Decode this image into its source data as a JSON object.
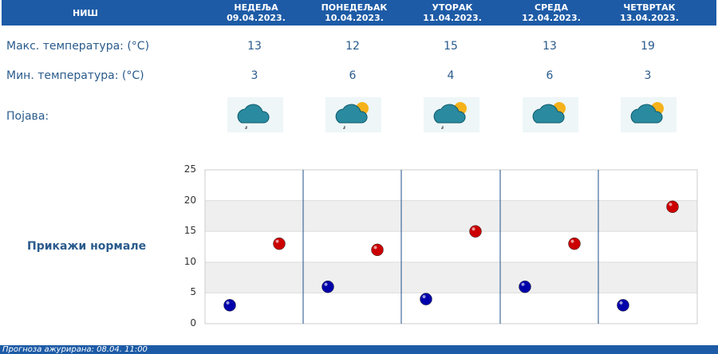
{
  "header": {
    "city": "НИШ",
    "days": [
      {
        "name": "НЕДЕЉА",
        "date": "09.04.2023.",
        "max": "13",
        "min": "3",
        "icon": "cloud-rain-icon"
      },
      {
        "name": "ПОНЕДЕЉАК",
        "date": "10.04.2023.",
        "max": "12",
        "min": "6",
        "icon": "partly-cloudy-rain-icon"
      },
      {
        "name": "УТОРАК",
        "date": "11.04.2023.",
        "max": "15",
        "min": "4",
        "icon": "partly-cloudy-rain-icon"
      },
      {
        "name": "СРЕДА",
        "date": "12.04.2023.",
        "max": "13",
        "min": "6",
        "icon": "partly-cloudy-icon"
      },
      {
        "name": "ЧЕТВРТАК",
        "date": "13.04.2023.",
        "max": "19",
        "min": "3",
        "icon": "partly-cloudy-icon"
      }
    ]
  },
  "labels": {
    "max": "Макс. температура: (°C)",
    "min": "Мин. температура: (°C)",
    "phenomenon": "Појава:"
  },
  "show_normals": "Прикажи нормале",
  "footer": "Прогноза ажурирана:  08.04. 11:00",
  "chart_data": {
    "type": "scatter",
    "ylim": [
      0,
      25
    ],
    "yticks": [
      "0",
      "5",
      "10",
      "15",
      "20",
      "25"
    ],
    "series": [
      {
        "values": [
          3,
          6,
          4,
          6,
          3
        ],
        "color": "#0000aa"
      },
      {
        "values": [
          13,
          12,
          15,
          13,
          19
        ],
        "color": "#cc0000"
      }
    ],
    "grid": true
  }
}
